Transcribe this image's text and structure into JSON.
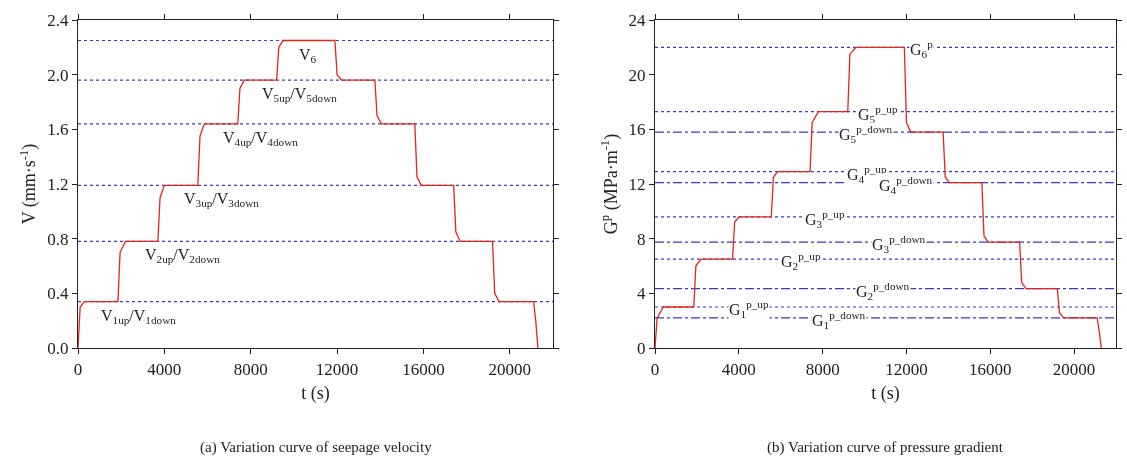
{
  "chart_data": [
    {
      "type": "line",
      "xlabel": "t (s)",
      "ylabel": "V (mm·s$^{-1}$)",
      "xlim": [
        0,
        22000
      ],
      "xticks": [
        0,
        4000,
        8000,
        12000,
        16000,
        20000
      ],
      "ylim": [
        0,
        2.4
      ],
      "yticks": [
        {
          "value": 0,
          "label": "0.0"
        },
        0.4,
        0.8,
        1.2,
        1.6,
        {
          "value": 2,
          "label": "2.0"
        },
        2.4
      ],
      "grid": false,
      "marker": "none",
      "series": [
        {
          "color": "#e8231b",
          "x": [
            0,
            100,
            300,
            1850,
            1950,
            2200,
            3700,
            3800,
            4000,
            5550,
            5650,
            5850,
            7400,
            7500,
            7700,
            9200,
            9300,
            9500,
            11900,
            12000,
            12200,
            13750,
            13850,
            14050,
            15600,
            15700,
            15900,
            17400,
            17500,
            17700,
            19200,
            19300,
            19500,
            21100,
            21200,
            21300
          ],
          "values": [
            0,
            0.3,
            0.34,
            0.34,
            0.7,
            0.78,
            0.78,
            1.1,
            1.19,
            1.19,
            1.55,
            1.64,
            1.64,
            1.9,
            1.96,
            1.96,
            2.2,
            2.25,
            2.25,
            2.0,
            1.96,
            1.96,
            1.7,
            1.64,
            1.64,
            1.25,
            1.19,
            1.19,
            0.85,
            0.78,
            0.78,
            0.4,
            0.34,
            0.34,
            0.2,
            0
          ]
        }
      ],
      "ref_lines": [
        {
          "axis": "y",
          "value": 0.34,
          "color": "#3a3ac8",
          "line_style": "dotted"
        },
        {
          "axis": "y",
          "value": 0.78,
          "color": "#3a3ac8",
          "line_style": "dotted"
        },
        {
          "axis": "y",
          "value": 1.19,
          "color": "#3a3ac8",
          "line_style": "dotted"
        },
        {
          "axis": "y",
          "value": 1.64,
          "color": "#3a3ac8",
          "line_style": "dotted"
        },
        {
          "axis": "y",
          "value": 1.96,
          "color": "#3a3ac8",
          "line_style": "dotted"
        },
        {
          "axis": "y",
          "value": 2.25,
          "color": "#3a3ac8",
          "line_style": "dotted"
        }
      ],
      "annotations": [
        {
          "text": "V$_{6}$",
          "x": 10650,
          "y": 2.25
        },
        {
          "text": "V$_{5up}$/V$_{5down}$",
          "x": 10240,
          "y": 1.96
        },
        {
          "text": "V$_{4up}$/V$_{4down}$",
          "x": 8440,
          "y": 1.64
        },
        {
          "text": "V$_{3up}$/V$_{3down}$",
          "x": 6640,
          "y": 1.19
        },
        {
          "text": "V$_{2up}$/V$_{2down}$",
          "x": 4830,
          "y": 0.78
        },
        {
          "text": "V$_{1up}$/V$_{1down}$",
          "x": 2790,
          "y": 0.34
        },
        "(a) Variation curve of seepage velocity"
      ]
    },
    {
      "type": "line",
      "xlabel": "t (s)",
      "ylabel": "G$^{p}$ (MPa·m$^{-1}$)",
      "xlim": [
        0,
        22000
      ],
      "xticks": [
        0,
        4000,
        8000,
        12000,
        16000,
        20000
      ],
      "ylim": [
        0,
        24
      ],
      "yticks": [
        0,
        4,
        8,
        12,
        16,
        20,
        24
      ],
      "grid": false,
      "marker": "none",
      "series": [
        {
          "color": "#e8231b",
          "x": [
            0,
            100,
            400,
            1850,
            1950,
            2200,
            3700,
            3800,
            4000,
            5550,
            5650,
            5850,
            7400,
            7500,
            7800,
            9200,
            9300,
            9600,
            11900,
            12000,
            12200,
            13750,
            13850,
            14050,
            15600,
            15700,
            15900,
            17400,
            17500,
            17700,
            19200,
            19300,
            19500,
            21100,
            21200,
            21300
          ],
          "values": [
            0,
            2.2,
            3.0,
            3.0,
            6.0,
            6.5,
            6.5,
            9.2,
            9.6,
            9.6,
            12.5,
            12.9,
            12.9,
            16.5,
            17.3,
            17.3,
            21.5,
            22.0,
            22.0,
            16.5,
            15.8,
            15.8,
            12.5,
            12.1,
            12.1,
            8.2,
            7.75,
            7.75,
            4.8,
            4.35,
            4.35,
            2.6,
            2.2,
            2.2,
            1.2,
            0
          ]
        }
      ],
      "ref_lines": [
        {
          "axis": "y",
          "value": 3.0,
          "color": "#3a3ac8",
          "line_style": "dotted"
        },
        {
          "axis": "y",
          "value": 6.5,
          "color": "#3a3ac8",
          "line_style": "dotted"
        },
        {
          "axis": "y",
          "value": 9.6,
          "color": "#3a3ac8",
          "line_style": "dotted"
        },
        {
          "axis": "y",
          "value": 12.9,
          "color": "#3a3ac8",
          "line_style": "dotted"
        },
        {
          "axis": "y",
          "value": 17.3,
          "color": "#3a3ac8",
          "line_style": "dotted"
        },
        {
          "axis": "y",
          "value": 22.0,
          "color": "#3a3ac8",
          "line_style": "dotted"
        },
        {
          "axis": "y",
          "value": 2.2,
          "color": "#3a3ac8",
          "line_style": "dashdot"
        },
        {
          "axis": "y",
          "value": 4.35,
          "color": "#3a3ac8",
          "line_style": "dashdot"
        },
        {
          "axis": "y",
          "value": 7.75,
          "color": "#3a3ac8",
          "line_style": "dashdot"
        },
        {
          "axis": "y",
          "value": 12.1,
          "color": "#3a3ac8",
          "line_style": "dashdot"
        },
        {
          "axis": "y",
          "value": 15.8,
          "color": "#3a3ac8",
          "line_style": "dashdot"
        }
      ],
      "annotations": [
        {
          "text": "G$_{6}$$^{p}$",
          "x": 12720,
          "y": 22.0
        },
        {
          "text": "G$_{5}$$^{p_up}$",
          "x": 10630,
          "y": 17.3
        },
        {
          "text": "G$_{5}$$^{p_down}$",
          "x": 10050,
          "y": 15.8
        },
        {
          "text": "G$_{4}$$^{p_up}$",
          "x": 10130,
          "y": 12.9
        },
        {
          "text": "G$_{4}$$^{p_down}$",
          "x": 11970,
          "y": 12.1
        },
        {
          "text": "G$_{3}$$^{p_up}$",
          "x": 8130,
          "y": 9.6
        },
        {
          "text": "G$_{3}$$^{p_down}$",
          "x": 11630,
          "y": 7.75
        },
        {
          "text": "G$_{2}$$^{p_up}$",
          "x": 6970,
          "y": 6.5
        },
        {
          "text": "G$_{2}$$^{p_down}$",
          "x": 10880,
          "y": 4.35
        },
        {
          "text": "G$_{1}$$^{p_up}$",
          "x": 4470,
          "y": 3.0
        },
        {
          "text": "G$_{1}$$^{p_down}$",
          "x": 8800,
          "y": 2.2
        },
        "(b) Variation curve of pressure gradient"
      ]
    }
  ]
}
